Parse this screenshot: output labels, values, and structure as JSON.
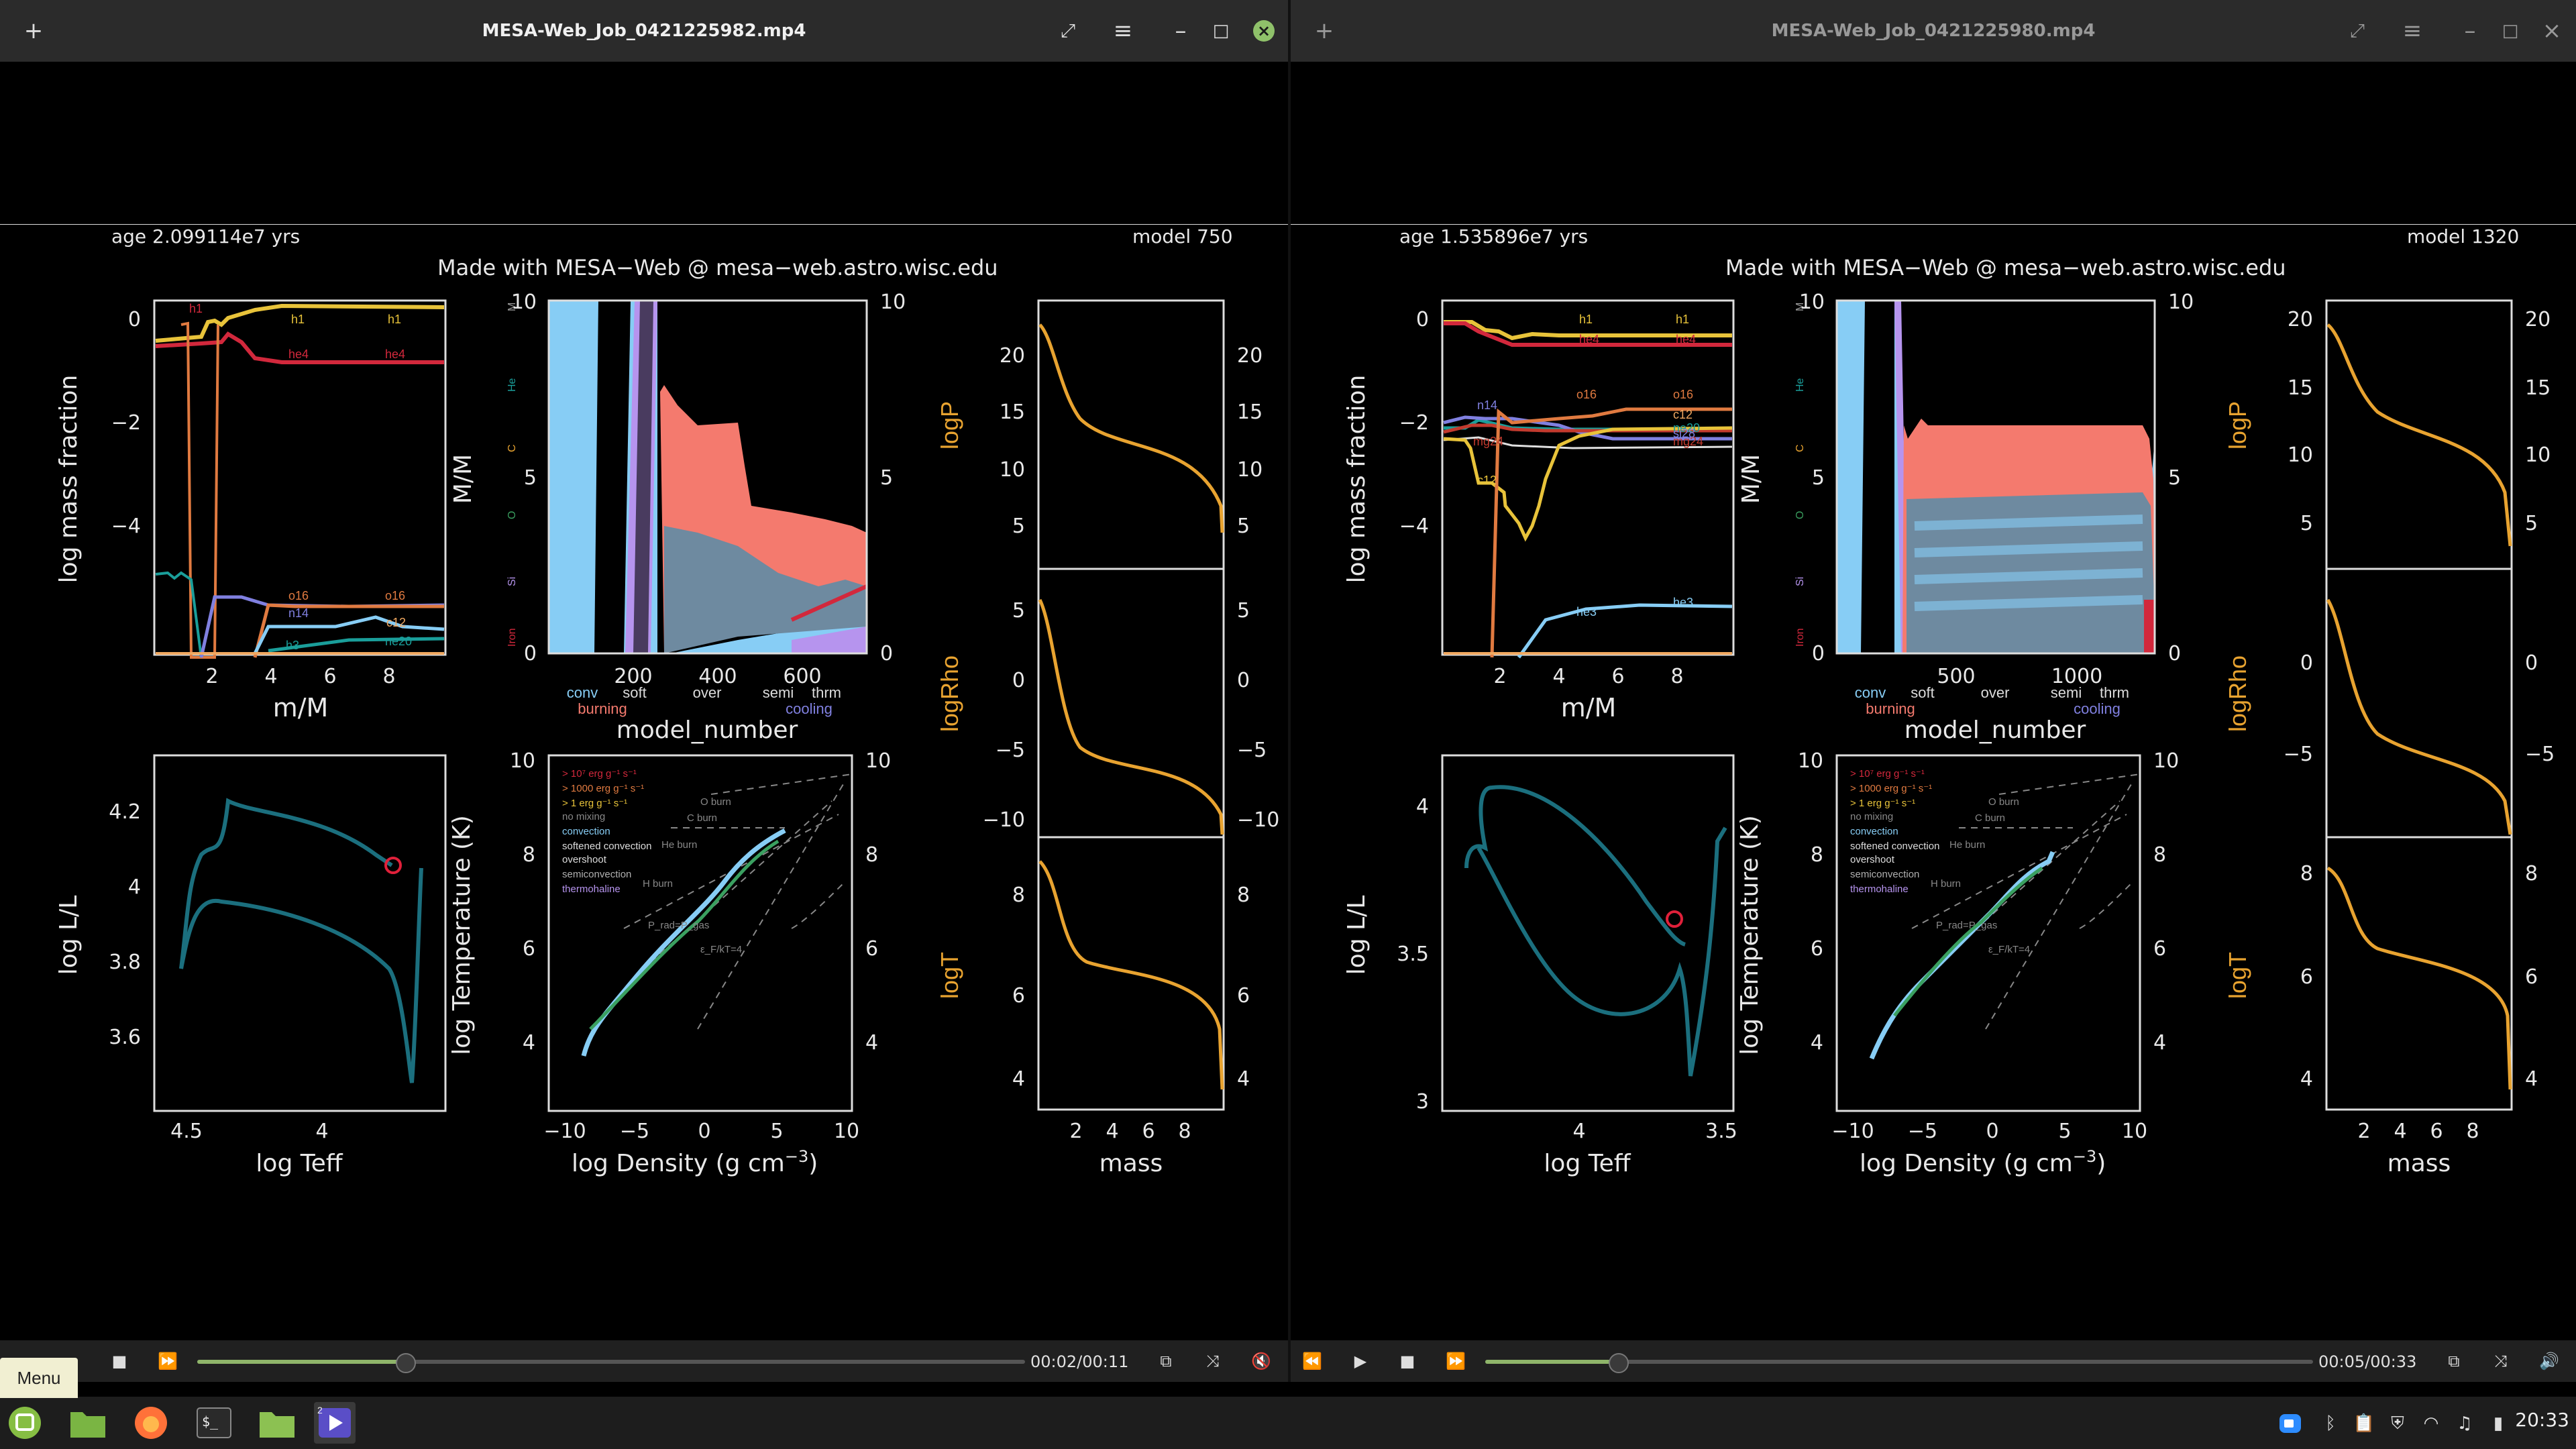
{
  "left": {
    "title": "MESA-Web_Job_0421225982.mp4",
    "time": "00:02/00:11",
    "progress": 0.25,
    "age": "age 2.099114e7 yrs",
    "model": "model 750",
    "credit": "Made with MESA−Web @ mesa−web.astro.wisc.edu",
    "kipp_x_ticks": [
      "200",
      "400",
      "600"
    ],
    "hr_x_ticks": [
      "4.5",
      "4"
    ],
    "hr_y_ticks": [
      "4.2",
      "4",
      "3.8",
      "3.6"
    ],
    "abund_labels": [
      "h1",
      "h1",
      "he4",
      "he4",
      "o16",
      "o16",
      "n14",
      "c12",
      "ne20",
      "h1",
      "h3"
    ],
    "logP_ticks": [
      "20",
      "15",
      "10",
      "5"
    ],
    "logRho_ticks": [
      "5",
      "0",
      "−5",
      "−10"
    ],
    "logT_ticks": [
      "8",
      "6",
      "4"
    ]
  },
  "right": {
    "title": "MESA-Web_Job_0421225980.mp4",
    "time": "00:05/00:33",
    "progress": 0.16,
    "age": "age 1.535896e7 yrs",
    "model": "model 1320",
    "credit": "Made with MESA−Web @ mesa−web.astro.wisc.edu",
    "kipp_x_ticks": [
      "500",
      "1000"
    ],
    "hr_x_ticks": [
      "4",
      "3.5"
    ],
    "hr_y_ticks": [
      "4",
      "3.5",
      "3"
    ],
    "abund_labels": [
      "h1",
      "h1",
      "he4",
      "he4",
      "o16",
      "o16",
      "c12",
      "ne20",
      "mg24",
      "si28",
      "he3",
      "he3",
      "n14",
      "c12",
      "mg24"
    ],
    "logP_ticks": [
      "20",
      "15",
      "10",
      "5"
    ],
    "logRho_ticks": [
      "0",
      "−5"
    ],
    "logT_ticks": [
      "8",
      "6",
      "4"
    ]
  },
  "plot_labels": {
    "abund_y": "log mass fraction",
    "abund_x": "m/M",
    "abund_y_ticks": [
      "0",
      "−2",
      "−4"
    ],
    "abund_x_ticks": [
      "2",
      "4",
      "6",
      "8"
    ],
    "kipp_y": "M/M",
    "kipp_right_ticks": [
      "10",
      "5",
      "0"
    ],
    "kipp_left_ticks": [
      "10",
      "5",
      "0"
    ],
    "kipp_x": "model_number",
    "kipp_side": [
      "M",
      "He",
      "C",
      "O",
      "Si",
      "Iron"
    ],
    "kipp_leg1": [
      "conv",
      "soft",
      "over",
      "semi",
      "thrm"
    ],
    "kipp_leg2": [
      "burning",
      "cooling"
    ],
    "hr_y": "log L/L",
    "hr_x": "log Teff",
    "rt_y": "log Temperature (K)",
    "rt_x": "log Density (g cm",
    "rt_x_sup": "−3",
    "rt_x_close": ")",
    "rt_y_ticks": [
      "10",
      "8",
      "6",
      "4"
    ],
    "rt_x_ticks": [
      "−10",
      "−5",
      "0",
      "5",
      "10"
    ],
    "rt_legend": [
      "> 10⁷ erg g⁻¹ s⁻¹",
      "> 1000 erg g⁻¹ s⁻¹",
      "> 1 erg g⁻¹ s⁻¹",
      "no mixing",
      "convection",
      "softened convection",
      "overshoot",
      "semiconvection",
      "thermohaline"
    ],
    "rt_lines": [
      "O burn",
      "C burn",
      "He burn",
      "H burn",
      "P_rad=P_gas",
      "ε_F/kT=4"
    ],
    "logP": "logP",
    "logRho": "logRho",
    "logT": "logT",
    "mass": "mass",
    "mass_ticks": [
      "2",
      "4",
      "6",
      "8"
    ]
  },
  "menu": {
    "label": "Menu"
  },
  "taskbar": {
    "clock": "20:33",
    "workspace_badge": "2"
  },
  "colors": {
    "accent": "#8fb56a",
    "track": "#e8a330",
    "teal": "#1b6f7e",
    "h1": "#e8c33a",
    "he4": "#d2283c",
    "o16": "#e07a40",
    "c12": "#f0a860",
    "n14": "#8080e0",
    "ne20": "#1a9e9a",
    "light_blue": "#87cdf5",
    "salmon": "#f47a6e",
    "steel": "#6e8aa0",
    "lavender": "#b694ee"
  }
}
